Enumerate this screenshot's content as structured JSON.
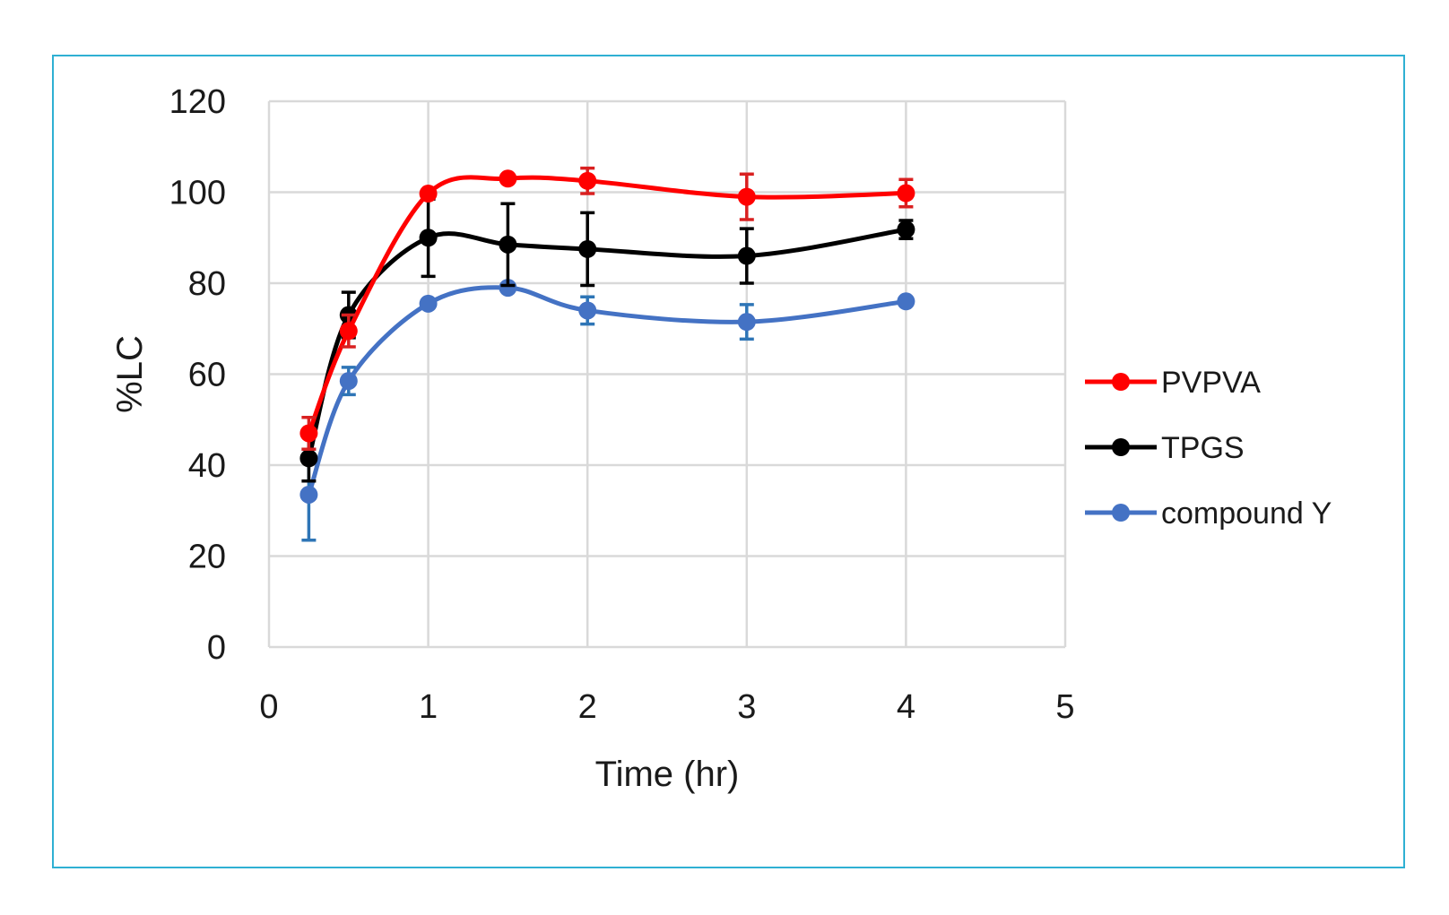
{
  "chart_data": {
    "type": "scatter",
    "xlabel": "Time (hr)",
    "ylabel": "%LC",
    "xlim": [
      0,
      5
    ],
    "ylim": [
      0,
      120
    ],
    "x_ticks": [
      "0",
      "1",
      "2",
      "3",
      "4",
      "5"
    ],
    "y_ticks": [
      "0",
      "20",
      "40",
      "60",
      "80",
      "100",
      "120"
    ],
    "grid": true,
    "legend_position": "right",
    "series": [
      {
        "name": "PVPVA",
        "color": "#ff0000",
        "error_color": "#d92020",
        "x": [
          0.25,
          0.5,
          1,
          1.5,
          2,
          3,
          4
        ],
        "y": [
          47,
          69.5,
          99.7,
          103,
          102.5,
          99,
          99.8
        ],
        "error": [
          3.5,
          3.5,
          0,
          0,
          2.8,
          5,
          3
        ]
      },
      {
        "name": "TPGS",
        "color": "#000000",
        "error_color": "#000000",
        "x": [
          0.25,
          0.5,
          1,
          1.5,
          2,
          3,
          4
        ],
        "y": [
          41.5,
          73,
          90,
          88.5,
          87.5,
          86,
          91.8
        ],
        "error": [
          5,
          5,
          8.5,
          9,
          8,
          6,
          2
        ]
      },
      {
        "name": "compound Y",
        "color": "#4472c4",
        "error_color": "#2e75b6",
        "x": [
          0.25,
          0.5,
          1,
          1.5,
          2,
          3,
          4
        ],
        "y": [
          33.5,
          58.5,
          75.5,
          79,
          74,
          71.5,
          76
        ],
        "error": [
          10,
          3,
          0,
          0,
          3,
          3.8,
          0
        ]
      }
    ]
  }
}
